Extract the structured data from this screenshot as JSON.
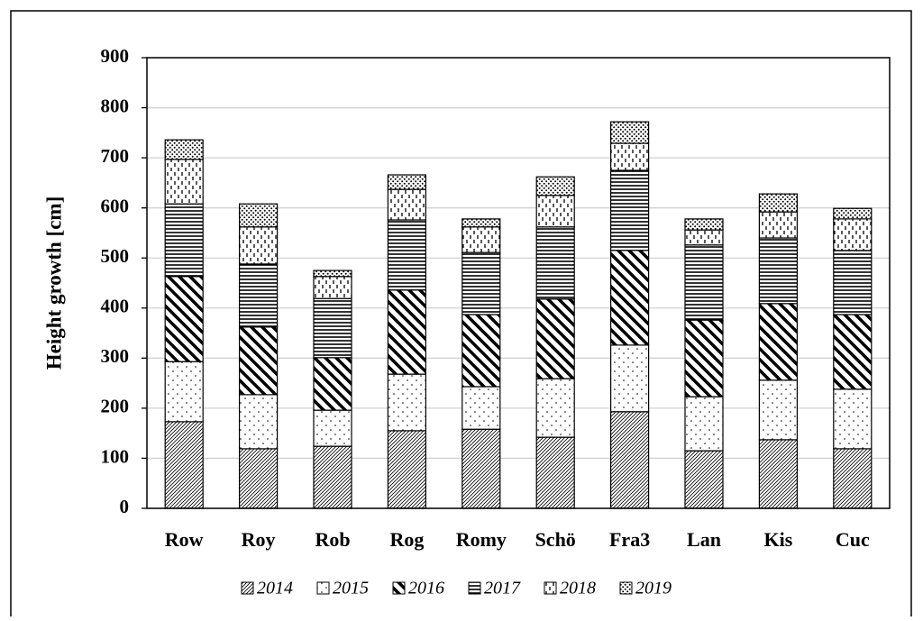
{
  "chart_data": {
    "type": "stacked-bar",
    "y_label": "Height growth [cm]",
    "categories": [
      "Row",
      "Roy",
      "Rob",
      "Rog",
      "Romy",
      "Schö",
      "Fra3",
      "Lan",
      "Kis",
      "Cuc"
    ],
    "series": [
      {
        "name": "2014",
        "values": [
          173,
          119,
          124,
          155,
          158,
          142,
          193,
          115,
          137,
          119
        ]
      },
      {
        "name": "2015",
        "values": [
          120,
          108,
          72,
          113,
          85,
          117,
          133,
          108,
          119,
          119
        ]
      },
      {
        "name": "2016",
        "values": [
          170,
          135,
          105,
          168,
          144,
          159,
          189,
          153,
          153,
          149
        ]
      },
      {
        "name": "2017",
        "values": [
          145,
          126,
          118,
          140,
          124,
          144,
          160,
          150,
          131,
          128
        ]
      },
      {
        "name": "2018",
        "values": [
          89,
          74,
          44,
          61,
          51,
          63,
          54,
          30,
          52,
          63
        ]
      },
      {
        "name": "2019",
        "values": [
          39,
          46,
          12,
          29,
          16,
          37,
          43,
          22,
          36,
          21
        ]
      }
    ],
    "ylim": [
      0,
      900
    ],
    "yticks": [
      0,
      100,
      200,
      300,
      400,
      500,
      600,
      700,
      800,
      900
    ],
    "grid": true,
    "legend": "bottom"
  }
}
